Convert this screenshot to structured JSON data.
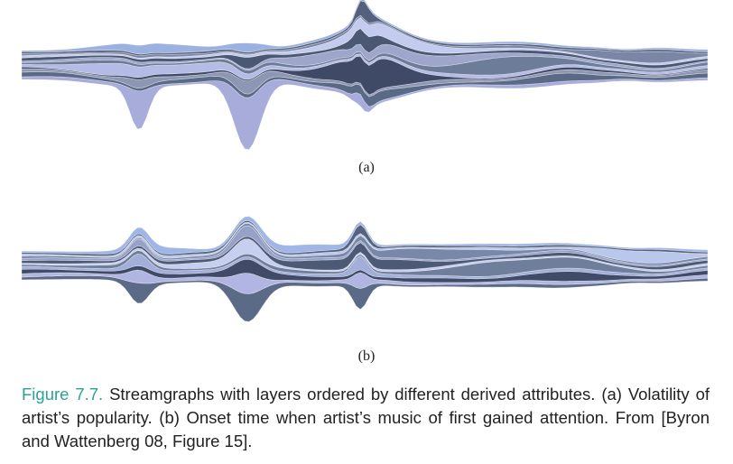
{
  "panels": [
    {
      "label": "(a)"
    },
    {
      "label": "(b)"
    }
  ],
  "caption": {
    "figure_label": "Figure 7.7.",
    "text": " Streamgraphs with layers ordered by different derived attributes. (a) Volatility of artist’s popularity. (b) Onset time when artist’s music of first gained attention. From [Byron and Wattenberg 08, Figure 15]."
  },
  "colors": {
    "accent": "#2aa392",
    "layers_a": [
      "#a8acdb",
      "#5a6a86",
      "#8d97b4",
      "#3e4a66",
      "#b4bce6",
      "#6d7c98",
      "#9ea6cc",
      "#4b5874",
      "#c3cbee",
      "#7b86a6",
      "#55617c",
      "#9bb1e0"
    ],
    "layers_b": [
      "#5b6a86",
      "#b0b5e2",
      "#3f4b67",
      "#a3aed9",
      "#6e7e9b",
      "#c6cff0",
      "#4d5a76",
      "#96a1c7",
      "#7988a8",
      "#b9c7ec",
      "#56637e",
      "#9fb6e6"
    ]
  }
}
